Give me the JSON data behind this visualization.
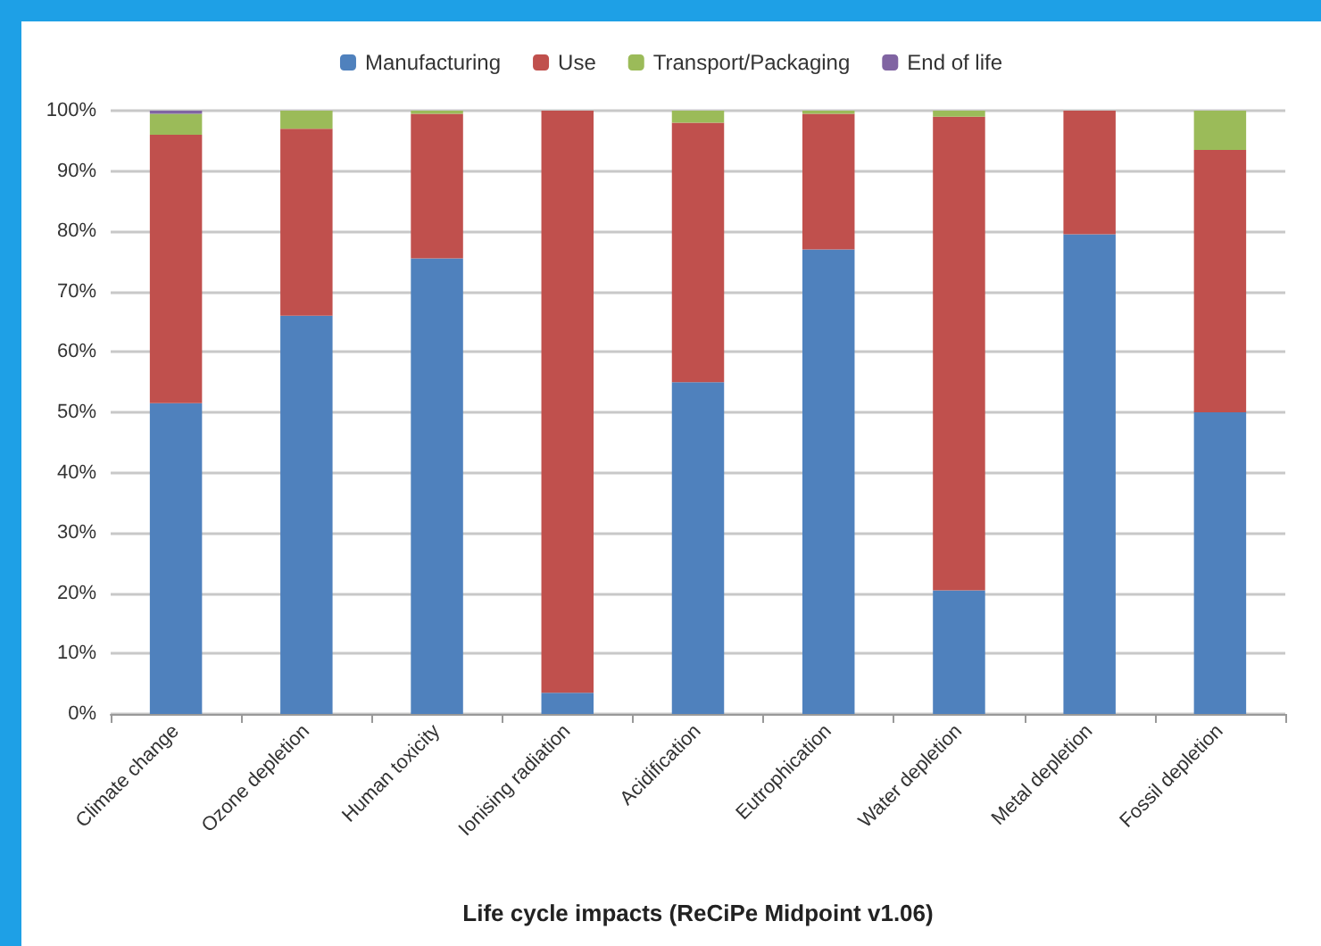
{
  "chart_data": {
    "type": "bar",
    "stacked": true,
    "xlabel": "Life cycle impacts (ReCiPe Midpoint v1.06)",
    "categories": [
      "Climate change",
      "Ozone depletion",
      "Human toxicity",
      "Ionising radiation",
      "Acidification",
      "Eutrophication",
      "Water depletion",
      "Metal depletion",
      "Fossil depletion"
    ],
    "series": [
      {
        "name": "Manufacturing",
        "color": "#4f81bd",
        "values": [
          51.5,
          66,
          75.5,
          3.5,
          55,
          77,
          20.5,
          79.5,
          50
        ]
      },
      {
        "name": "Use",
        "color": "#c0504d",
        "values": [
          44.5,
          31,
          24,
          96.5,
          43,
          22.5,
          78.5,
          20.5,
          43.5
        ]
      },
      {
        "name": "Transport/Packaging",
        "color": "#9bbb59",
        "values": [
          3.5,
          3,
          0.5,
          0,
          2,
          0.5,
          1,
          0,
          6.5
        ]
      },
      {
        "name": "End of life",
        "color": "#8064a2",
        "values": [
          0.5,
          0,
          0,
          0,
          0,
          0,
          0,
          0,
          0
        ]
      }
    ],
    "ylim": [
      0,
      100
    ],
    "yticks": [
      {
        "value": 0,
        "label": "0%"
      },
      {
        "value": 10,
        "label": "10%"
      },
      {
        "value": 20,
        "label": "20%"
      },
      {
        "value": 30,
        "label": "30%"
      },
      {
        "value": 40,
        "label": "40%"
      },
      {
        "value": 50,
        "label": "50%"
      },
      {
        "value": 60,
        "label": "60%"
      },
      {
        "value": 70,
        "label": "70%"
      },
      {
        "value": 80,
        "label": "80%"
      },
      {
        "value": 90,
        "label": "90%"
      },
      {
        "value": 100,
        "label": "100%"
      }
    ],
    "grid": "y",
    "legend": "top"
  }
}
